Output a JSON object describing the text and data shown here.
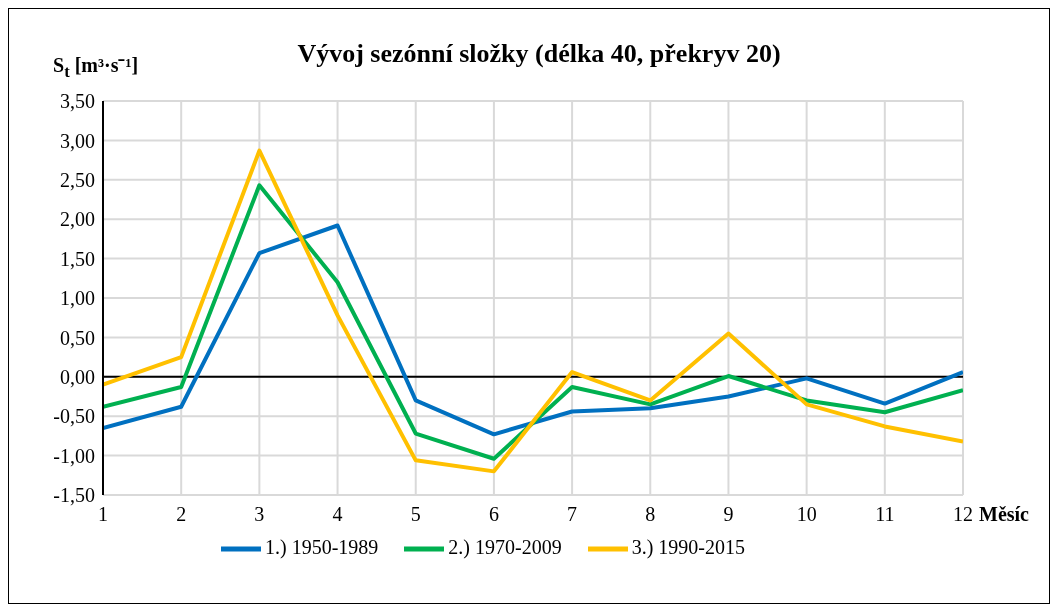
{
  "chart_data": {
    "type": "line",
    "title": "Vývoj sezónní složky (délka 40, překryv 20)",
    "xlabel": "Měsíc",
    "ylabel": "S$_{t}$ [m³·s⁻¹]",
    "x": [
      1,
      2,
      3,
      4,
      5,
      6,
      7,
      8,
      9,
      10,
      11,
      12
    ],
    "xlim": [
      1,
      12
    ],
    "xticks": [
      1,
      2,
      3,
      4,
      5,
      6,
      7,
      8,
      9,
      10,
      11,
      12
    ],
    "ylim": [
      -1.5,
      3.5
    ],
    "yticks": [
      {
        "value": -1.5,
        "label": "-1,50"
      },
      {
        "value": -1,
        "label": "-1,00"
      },
      {
        "value": -0.5,
        "label": "-0,50"
      },
      {
        "value": 0,
        "label": "0,00"
      },
      {
        "value": 0.5,
        "label": "0,50"
      },
      {
        "value": 1,
        "label": "1,00"
      },
      {
        "value": 1.5,
        "label": "1,50"
      },
      {
        "value": 2,
        "label": "2,00"
      },
      {
        "value": 2.5,
        "label": "2,50"
      },
      {
        "value": 3,
        "label": "3,00"
      },
      {
        "value": 3.5,
        "label": "3,50"
      }
    ],
    "grid": true,
    "legend": "bottom",
    "marker": "none",
    "line_style": "solid",
    "series": [
      {
        "name": "1.) 1950-1989",
        "color": "#0070c0",
        "values": [
          -0.65,
          -0.38,
          1.57,
          1.92,
          -0.3,
          -0.73,
          -0.44,
          -0.4,
          -0.25,
          -0.02,
          -0.34,
          0.06
        ]
      },
      {
        "name": "2.) 1970-2009",
        "color": "#00b050",
        "values": [
          -0.38,
          -0.13,
          2.43,
          1.2,
          -0.72,
          -1.04,
          -0.13,
          -0.35,
          0.01,
          -0.3,
          -0.45,
          -0.17
        ]
      },
      {
        "name": "3.) 1990-2015",
        "color": "#ffc000",
        "values": [
          -0.1,
          0.25,
          2.87,
          0.78,
          -1.06,
          -1.2,
          0.06,
          -0.3,
          0.55,
          -0.35,
          -0.63,
          -0.82
        ]
      }
    ]
  }
}
